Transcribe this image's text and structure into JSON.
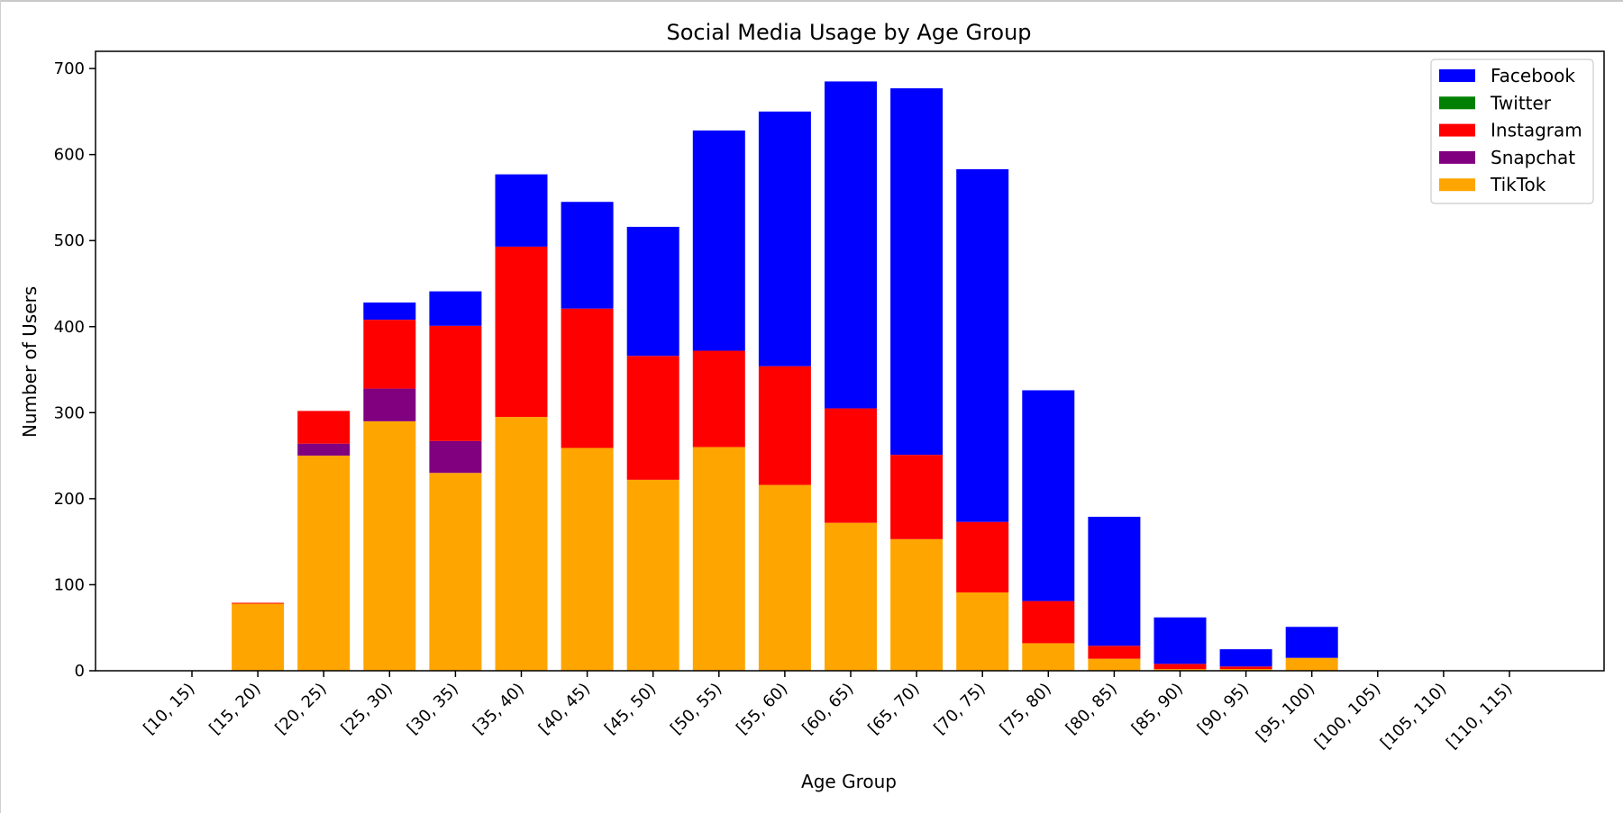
{
  "chart_data": {
    "type": "bar",
    "stacked": true,
    "title": "Social Media Usage by Age Group",
    "xlabel": "Age Group",
    "ylabel": "Number of Users",
    "ylim": [
      0,
      720
    ],
    "yticks": [
      0,
      100,
      200,
      300,
      400,
      500,
      600,
      700
    ],
    "grid": false,
    "legend_position": "top-right",
    "categories": [
      "[10, 15)",
      "[15, 20)",
      "[20, 25)",
      "[25, 30)",
      "[30, 35)",
      "[35, 40)",
      "[40, 45)",
      "[45, 50)",
      "[50, 55)",
      "[55, 60)",
      "[60, 65)",
      "[65, 70)",
      "[70, 75)",
      "[75, 80)",
      "[80, 85)",
      "[85, 90)",
      "[90, 95)",
      "[95, 100)",
      "[100, 105)",
      "[105, 110)",
      "[110, 115)"
    ],
    "stack_order_bottom_to_top": [
      "TikTok",
      "Snapchat",
      "Twitter",
      "Instagram",
      "Facebook"
    ],
    "series": [
      {
        "name": "Facebook",
        "color": "#0000ff",
        "values": [
          0,
          0,
          0,
          20,
          40,
          84,
          124,
          150,
          256,
          296,
          380,
          426,
          410,
          245,
          150,
          54,
          20,
          36,
          0,
          0,
          0
        ]
      },
      {
        "name": "Twitter",
        "color": "#008000",
        "values": [
          0,
          0,
          0,
          0,
          0,
          0,
          0,
          0,
          0,
          0,
          0,
          0,
          0,
          0,
          0,
          0,
          0,
          0,
          0,
          0,
          0
        ]
      },
      {
        "name": "Instagram",
        "color": "#ff0000",
        "values": [
          0,
          1,
          38,
          80,
          134,
          198,
          162,
          144,
          112,
          138,
          133,
          98,
          82,
          49,
          15,
          6,
          3,
          0,
          0,
          0,
          0
        ]
      },
      {
        "name": "Snapchat",
        "color": "#800080",
        "values": [
          0,
          0,
          14,
          38,
          37,
          0,
          0,
          0,
          0,
          0,
          0,
          0,
          0,
          0,
          0,
          0,
          0,
          0,
          0,
          0,
          0
        ]
      },
      {
        "name": "TikTok",
        "color": "#ffa500",
        "values": [
          0,
          78,
          250,
          290,
          230,
          295,
          259,
          222,
          260,
          216,
          172,
          153,
          91,
          32,
          14,
          2,
          2,
          15,
          0,
          0,
          0
        ]
      }
    ]
  }
}
